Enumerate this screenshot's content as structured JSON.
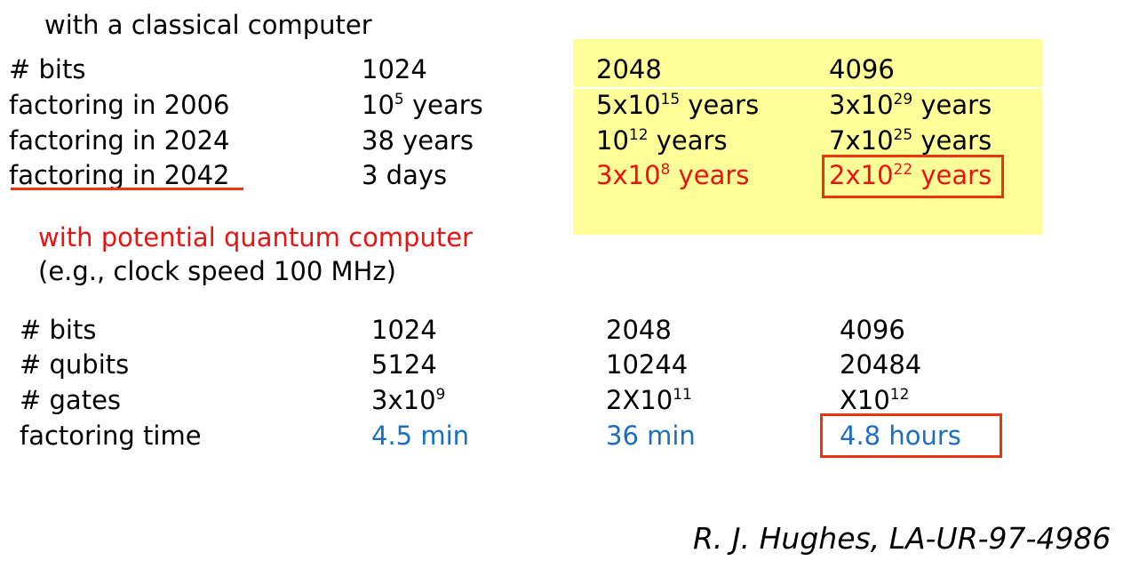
{
  "classical": {
    "heading": "with a classical computer",
    "rows": [
      {
        "label": "# bits",
        "c1": {
          "text": "1024"
        },
        "c2": {
          "text": "2048"
        },
        "c3": {
          "text": "4096"
        }
      },
      {
        "label": "factoring in 2006",
        "c1": {
          "base": "10",
          "exp": "5",
          "suffix": " years"
        },
        "c2": {
          "base": "5x10",
          "exp": "15",
          "suffix": " years"
        },
        "c3": {
          "base": "3x10",
          "exp": "29",
          "suffix": " years"
        }
      },
      {
        "label": "factoring in 2024",
        "c1": {
          "text": "38 years"
        },
        "c2": {
          "base": "10",
          "exp": "12",
          "suffix": " years"
        },
        "c3": {
          "base": "7x10",
          "exp": "25",
          "suffix": " years"
        }
      },
      {
        "label": "factoring in 2042",
        "c1": {
          "text": "3 days"
        },
        "c2": {
          "base": "3x10",
          "exp": "8",
          "suffix": " years"
        },
        "c3": {
          "base": "2x10",
          "exp": "22",
          "suffix": " years"
        }
      }
    ]
  },
  "quantum": {
    "heading": "with potential quantum computer",
    "subheading": "(e.g., clock speed 100 MHz)",
    "rows": [
      {
        "label": "# bits",
        "c1": {
          "text": "1024"
        },
        "c2": {
          "text": "2048"
        },
        "c3": {
          "text": "4096"
        }
      },
      {
        "label": "# qubits",
        "c1": {
          "text": "5124"
        },
        "c2": {
          "text": "10244"
        },
        "c3": {
          "text": "20484"
        }
      },
      {
        "label": "# gates",
        "c1": {
          "base": "3x10",
          "exp": "9",
          "suffix": ""
        },
        "c2": {
          "base": "2X10",
          "exp": "11",
          "suffix": ""
        },
        "c3": {
          "base": "X10",
          "exp": "12",
          "suffix": ""
        }
      },
      {
        "label": "factoring time",
        "c1": {
          "text": "4.5 min"
        },
        "c2": {
          "text": "36 min"
        },
        "c3": {
          "text": "4.8 hours"
        }
      }
    ]
  },
  "citation": "R. J. Hughes, LA-UR-97-4986",
  "colors": {
    "highlight_yellow": "#ffff99",
    "emphasis_red": "#ee1111",
    "time_blue": "#1a6fc4",
    "box_red": "#ee3311"
  }
}
